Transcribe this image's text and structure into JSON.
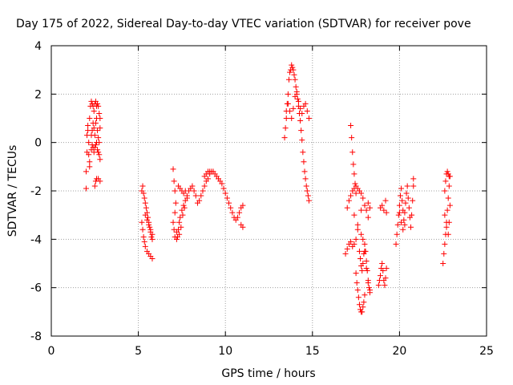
{
  "chart_data": {
    "type": "scatter",
    "title": "Day 175 of 2022, Sidereal Day-to-day VTEC variation (SDTVAR) for receiver pove",
    "xlabel": "GPS time / hours",
    "ylabel": "SDTVAR / TECUs",
    "xlim": [
      0,
      25
    ],
    "ylim": [
      -8,
      4
    ],
    "xticks": [
      0,
      5,
      10,
      15,
      20,
      25
    ],
    "yticks": [
      -8,
      -6,
      -4,
      -2,
      0,
      2,
      4
    ],
    "grid": true,
    "marker": "+",
    "color": "#ff0000",
    "series": [
      {
        "name": "pove",
        "points": [
          [
            2.0,
            -1.9
          ],
          [
            2.0,
            -1.2
          ],
          [
            2.05,
            -0.4
          ],
          [
            2.05,
            0.3
          ],
          [
            2.1,
            0.7
          ],
          [
            2.1,
            0.5
          ],
          [
            2.15,
            0.0
          ],
          [
            2.15,
            -0.5
          ],
          [
            2.2,
            -0.8
          ],
          [
            2.2,
            -1.0
          ],
          [
            2.2,
            1.0
          ],
          [
            2.25,
            1.5
          ],
          [
            2.3,
            1.7
          ],
          [
            2.35,
            1.6
          ],
          [
            2.4,
            1.5
          ],
          [
            2.45,
            1.3
          ],
          [
            2.5,
            1.6
          ],
          [
            2.55,
            1.7
          ],
          [
            2.6,
            1.5
          ],
          [
            2.65,
            1.6
          ],
          [
            2.7,
            1.5
          ],
          [
            2.75,
            1.2
          ],
          [
            2.8,
            1.0
          ],
          [
            2.8,
            0.6
          ],
          [
            2.3,
            0.3
          ],
          [
            2.35,
            0.5
          ],
          [
            2.4,
            0.8
          ],
          [
            2.45,
            0.6
          ],
          [
            2.5,
            0.3
          ],
          [
            2.55,
            0.8
          ],
          [
            2.6,
            1.0
          ],
          [
            2.65,
            0.5
          ],
          [
            2.7,
            0.2
          ],
          [
            2.75,
            0.0
          ],
          [
            2.3,
            -0.3
          ],
          [
            2.35,
            -0.1
          ],
          [
            2.4,
            -0.2
          ],
          [
            2.45,
            -0.4
          ],
          [
            2.5,
            -0.2
          ],
          [
            2.55,
            -0.1
          ],
          [
            2.6,
            0.0
          ],
          [
            2.65,
            -0.3
          ],
          [
            2.7,
            -0.4
          ],
          [
            2.75,
            -0.5
          ],
          [
            2.8,
            -0.7
          ],
          [
            2.5,
            -1.8
          ],
          [
            2.55,
            -1.6
          ],
          [
            2.6,
            -1.5
          ],
          [
            2.7,
            -1.5
          ],
          [
            2.8,
            -1.6
          ],
          [
            5.2,
            -3.3
          ],
          [
            5.25,
            -3.6
          ],
          [
            5.3,
            -3.9
          ],
          [
            5.35,
            -4.1
          ],
          [
            5.4,
            -4.3
          ],
          [
            5.5,
            -4.5
          ],
          [
            5.6,
            -4.6
          ],
          [
            5.7,
            -4.7
          ],
          [
            5.8,
            -4.8
          ],
          [
            5.2,
            -2.0
          ],
          [
            5.25,
            -1.8
          ],
          [
            5.3,
            -2.1
          ],
          [
            5.35,
            -2.3
          ],
          [
            5.4,
            -2.5
          ],
          [
            5.45,
            -2.7
          ],
          [
            5.5,
            -2.9
          ],
          [
            5.55,
            -3.1
          ],
          [
            5.6,
            -3.3
          ],
          [
            5.65,
            -3.5
          ],
          [
            5.7,
            -3.7
          ],
          [
            5.75,
            -3.9
          ],
          [
            5.8,
            -4.0
          ],
          [
            5.4,
            -3.0
          ],
          [
            5.5,
            -3.2
          ],
          [
            5.6,
            -3.4
          ],
          [
            5.7,
            -3.6
          ],
          [
            5.8,
            -3.8
          ],
          [
            7.0,
            -1.1
          ],
          [
            7.05,
            -1.6
          ],
          [
            7.1,
            -2.0
          ],
          [
            7.15,
            -2.5
          ],
          [
            7.1,
            -2.9
          ],
          [
            7.0,
            -3.3
          ],
          [
            7.05,
            -3.6
          ],
          [
            7.1,
            -3.9
          ],
          [
            7.2,
            -4.0
          ],
          [
            7.25,
            -3.9
          ],
          [
            7.3,
            -3.6
          ],
          [
            7.35,
            -3.3
          ],
          [
            7.4,
            -3.1
          ],
          [
            7.5,
            -2.8
          ],
          [
            7.6,
            -2.6
          ],
          [
            7.7,
            -2.4
          ],
          [
            7.8,
            -2.2
          ],
          [
            7.9,
            -2.0
          ],
          [
            8.0,
            -1.9
          ],
          [
            8.1,
            -1.8
          ],
          [
            8.2,
            -2.0
          ],
          [
            8.3,
            -2.2
          ],
          [
            8.4,
            -2.5
          ],
          [
            8.5,
            -2.4
          ],
          [
            8.6,
            -2.2
          ],
          [
            8.7,
            -2.0
          ],
          [
            8.8,
            -1.8
          ],
          [
            8.9,
            -1.6
          ],
          [
            9.0,
            -1.5
          ],
          [
            9.1,
            -1.3
          ],
          [
            9.2,
            -1.2
          ],
          [
            9.3,
            -1.2
          ],
          [
            9.4,
            -1.3
          ],
          [
            9.5,
            -1.4
          ],
          [
            9.6,
            -1.5
          ],
          [
            9.7,
            -1.6
          ],
          [
            9.8,
            -1.7
          ],
          [
            9.9,
            -1.9
          ],
          [
            10.0,
            -2.1
          ],
          [
            10.1,
            -2.3
          ],
          [
            10.2,
            -2.5
          ],
          [
            10.3,
            -2.7
          ],
          [
            10.4,
            -2.9
          ],
          [
            10.5,
            -3.1
          ],
          [
            10.6,
            -3.2
          ],
          [
            10.7,
            -3.1
          ],
          [
            10.8,
            -2.9
          ],
          [
            10.9,
            -2.7
          ],
          [
            11.0,
            -2.6
          ],
          [
            10.9,
            -3.4
          ],
          [
            11.0,
            -3.5
          ],
          [
            7.3,
            -1.8
          ],
          [
            7.4,
            -1.9
          ],
          [
            7.5,
            -2.0
          ],
          [
            7.6,
            -2.1
          ],
          [
            7.7,
            -2.0
          ],
          [
            7.8,
            -2.3
          ],
          [
            8.8,
            -1.4
          ],
          [
            8.9,
            -1.3
          ],
          [
            9.0,
            -1.2
          ],
          [
            9.1,
            -1.2
          ],
          [
            7.2,
            -3.7
          ],
          [
            7.35,
            -3.8
          ],
          [
            7.45,
            -3.5
          ],
          [
            7.55,
            -3.0
          ],
          [
            7.65,
            -2.7
          ],
          [
            13.4,
            0.2
          ],
          [
            13.45,
            0.6
          ],
          [
            13.5,
            1.0
          ],
          [
            13.55,
            1.6
          ],
          [
            13.6,
            2.0
          ],
          [
            13.65,
            2.6
          ],
          [
            13.7,
            2.9
          ],
          [
            13.75,
            3.0
          ],
          [
            13.8,
            3.2
          ],
          [
            13.85,
            3.1
          ],
          [
            13.9,
            3.0
          ],
          [
            13.95,
            2.8
          ],
          [
            14.0,
            2.6
          ],
          [
            14.05,
            2.3
          ],
          [
            14.1,
            2.1
          ],
          [
            14.15,
            1.8
          ],
          [
            14.2,
            1.5
          ],
          [
            14.25,
            1.2
          ],
          [
            14.3,
            0.9
          ],
          [
            14.35,
            0.5
          ],
          [
            14.4,
            0.1
          ],
          [
            14.45,
            -0.4
          ],
          [
            14.5,
            -0.8
          ],
          [
            14.55,
            -1.2
          ],
          [
            14.6,
            -1.5
          ],
          [
            14.65,
            -1.8
          ],
          [
            14.7,
            -2.0
          ],
          [
            14.75,
            -2.2
          ],
          [
            14.8,
            -2.4
          ],
          [
            13.5,
            1.3
          ],
          [
            13.6,
            1.6
          ],
          [
            13.7,
            1.3
          ],
          [
            13.8,
            1.0
          ],
          [
            13.9,
            1.4
          ],
          [
            14.0,
            1.9
          ],
          [
            14.1,
            2.0
          ],
          [
            14.2,
            1.7
          ],
          [
            14.3,
            1.4
          ],
          [
            14.4,
            1.2
          ],
          [
            14.5,
            1.5
          ],
          [
            14.6,
            1.6
          ],
          [
            14.7,
            1.3
          ],
          [
            14.8,
            1.0
          ],
          [
            16.9,
            -4.6
          ],
          [
            17.0,
            -4.4
          ],
          [
            17.1,
            -4.2
          ],
          [
            17.2,
            -4.1
          ],
          [
            17.3,
            -4.3
          ],
          [
            17.4,
            -4.2
          ],
          [
            17.5,
            -4.0
          ],
          [
            17.6,
            -3.6
          ],
          [
            17.0,
            -2.7
          ],
          [
            17.1,
            -2.4
          ],
          [
            17.2,
            -2.2
          ],
          [
            17.3,
            -2.0
          ],
          [
            17.4,
            -1.9
          ],
          [
            17.5,
            -1.8
          ],
          [
            17.6,
            -1.9
          ],
          [
            17.7,
            -2.0
          ],
          [
            17.8,
            -2.1
          ],
          [
            17.9,
            -2.3
          ],
          [
            18.0,
            -2.6
          ],
          [
            18.1,
            -2.8
          ],
          [
            18.2,
            -3.1
          ],
          [
            17.2,
            0.7
          ],
          [
            17.25,
            0.2
          ],
          [
            17.3,
            -0.4
          ],
          [
            17.35,
            -0.9
          ],
          [
            17.4,
            -1.3
          ],
          [
            17.45,
            -1.7
          ],
          [
            17.5,
            -2.1
          ],
          [
            17.5,
            -5.4
          ],
          [
            17.55,
            -5.8
          ],
          [
            17.6,
            -6.1
          ],
          [
            17.65,
            -6.4
          ],
          [
            17.7,
            -6.7
          ],
          [
            17.75,
            -6.9
          ],
          [
            17.8,
            -7.0
          ],
          [
            17.85,
            -7.0
          ],
          [
            17.9,
            -6.8
          ],
          [
            17.95,
            -6.6
          ],
          [
            18.0,
            -6.3
          ],
          [
            17.7,
            -4.5
          ],
          [
            17.75,
            -4.8
          ],
          [
            17.8,
            -5.1
          ],
          [
            17.85,
            -5.3
          ],
          [
            17.9,
            -5.0
          ],
          [
            17.95,
            -4.6
          ],
          [
            18.0,
            -4.2
          ],
          [
            18.05,
            -4.5
          ],
          [
            18.1,
            -4.9
          ],
          [
            18.15,
            -5.3
          ],
          [
            18.2,
            -5.7
          ],
          [
            18.25,
            -6.0
          ],
          [
            18.3,
            -6.2
          ],
          [
            17.8,
            -3.8
          ],
          [
            17.9,
            -4.0
          ],
          [
            18.0,
            -4.5
          ],
          [
            18.1,
            -5.2
          ],
          [
            18.2,
            -5.8
          ],
          [
            18.3,
            -6.1
          ],
          [
            17.4,
            -3.0
          ],
          [
            17.6,
            -3.4
          ],
          [
            17.8,
            -2.8
          ],
          [
            18.2,
            -2.5
          ],
          [
            18.3,
            -2.7
          ],
          [
            18.8,
            -5.9
          ],
          [
            18.85,
            -5.7
          ],
          [
            18.9,
            -5.5
          ],
          [
            18.95,
            -5.2
          ],
          [
            19.0,
            -5.0
          ],
          [
            19.05,
            -5.3
          ],
          [
            19.1,
            -5.7
          ],
          [
            19.15,
            -5.9
          ],
          [
            19.2,
            -5.6
          ],
          [
            19.25,
            -5.2
          ],
          [
            18.9,
            -2.7
          ],
          [
            19.0,
            -2.6
          ],
          [
            19.1,
            -2.8
          ],
          [
            19.2,
            -2.4
          ],
          [
            19.25,
            -2.9
          ],
          [
            19.8,
            -4.2
          ],
          [
            19.85,
            -3.8
          ],
          [
            19.9,
            -3.4
          ],
          [
            19.95,
            -3.0
          ],
          [
            20.0,
            -2.6
          ],
          [
            20.05,
            -2.2
          ],
          [
            20.1,
            -1.9
          ],
          [
            20.15,
            -2.4
          ],
          [
            20.2,
            -2.8
          ],
          [
            20.25,
            -3.2
          ],
          [
            20.3,
            -2.9
          ],
          [
            20.35,
            -2.5
          ],
          [
            20.4,
            -2.1
          ],
          [
            20.45,
            -1.8
          ],
          [
            20.5,
            -2.3
          ],
          [
            20.55,
            -2.7
          ],
          [
            20.6,
            -3.1
          ],
          [
            20.65,
            -3.5
          ],
          [
            20.7,
            -3.0
          ],
          [
            20.75,
            -2.4
          ],
          [
            20.8,
            -1.8
          ],
          [
            20.8,
            -1.5
          ],
          [
            20.0,
            -2.9
          ],
          [
            20.1,
            -3.3
          ],
          [
            20.2,
            -3.6
          ],
          [
            20.3,
            -3.4
          ],
          [
            22.5,
            -5.0
          ],
          [
            22.55,
            -4.6
          ],
          [
            22.6,
            -4.2
          ],
          [
            22.65,
            -3.8
          ],
          [
            22.7,
            -3.3
          ],
          [
            22.75,
            -2.8
          ],
          [
            22.8,
            -2.3
          ],
          [
            22.85,
            -1.8
          ],
          [
            22.9,
            -1.4
          ],
          [
            22.6,
            -2.0
          ],
          [
            22.65,
            -1.6
          ],
          [
            22.7,
            -1.3
          ],
          [
            22.75,
            -1.2
          ],
          [
            22.8,
            -1.3
          ],
          [
            22.85,
            -1.4
          ],
          [
            22.6,
            -3.0
          ],
          [
            22.7,
            -3.5
          ],
          [
            22.8,
            -3.8
          ],
          [
            22.85,
            -3.3
          ],
          [
            22.9,
            -2.6
          ]
        ]
      }
    ]
  }
}
